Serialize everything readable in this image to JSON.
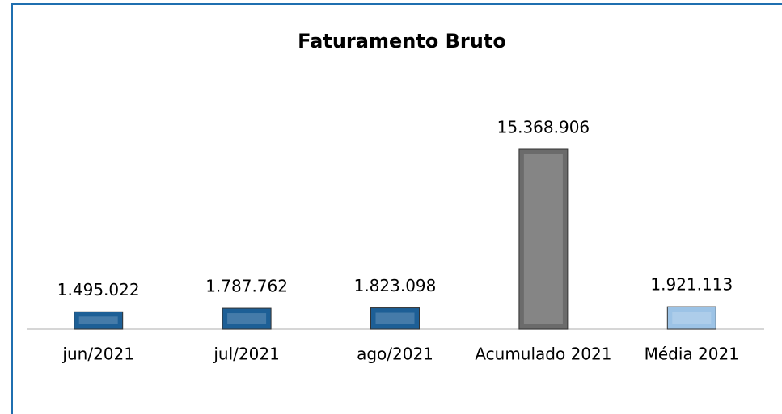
{
  "chart_data": {
    "type": "bar",
    "title": "Faturamento Bruto",
    "categories": [
      "jun/2021",
      "jul/2021",
      "ago/2021",
      "Acumulado 2021",
      "Média 2021"
    ],
    "values": [
      1495022,
      1787762,
      1823098,
      15368906,
      1921113
    ],
    "value_labels": [
      "1.495.022",
      "1.787.762",
      "1.823.098",
      "15.368.906",
      "1.921.113"
    ],
    "colors": [
      "#1d5f96",
      "#1d5f96",
      "#1d5f96",
      "#6b6b6b",
      "#9cc3e6"
    ]
  }
}
